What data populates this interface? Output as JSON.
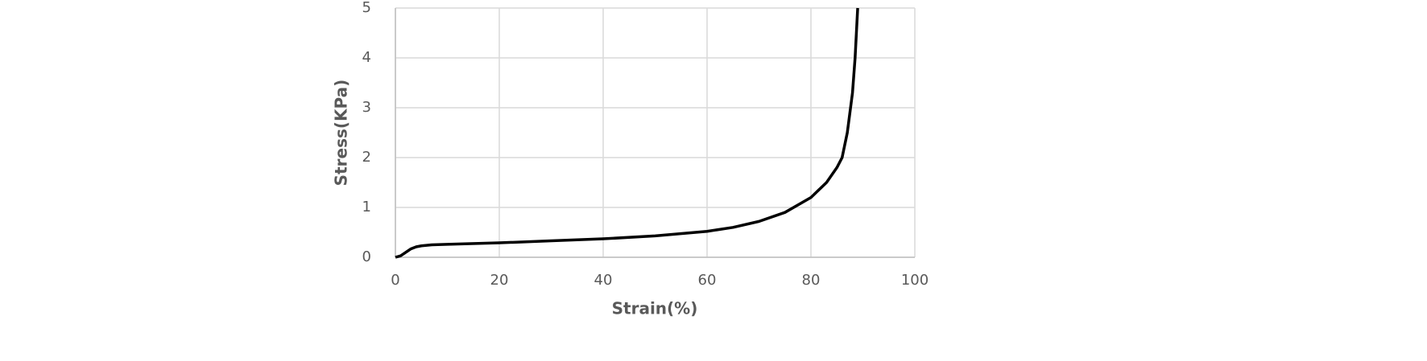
{
  "chart_data": {
    "type": "line",
    "x_label": "Strain(%)",
    "y_label": "Stress(KPa)",
    "xlim": [
      0,
      100
    ],
    "xticks": [
      0,
      20,
      40,
      60,
      80,
      100
    ],
    "ylim": [
      0,
      5
    ],
    "yticks": [
      0,
      1,
      2,
      3,
      4,
      5
    ],
    "grid": true,
    "series": [
      {
        "color": "#000000",
        "x": [
          0,
          1,
          2,
          3,
          4,
          5,
          7,
          10,
          20,
          30,
          40,
          50,
          60,
          65,
          70,
          75,
          80,
          83,
          85,
          86,
          87,
          88,
          88.5,
          89
        ],
        "values": [
          0,
          0.03,
          0.1,
          0.17,
          0.21,
          0.23,
          0.25,
          0.26,
          0.29,
          0.33,
          0.37,
          0.43,
          0.52,
          0.6,
          0.72,
          0.9,
          1.2,
          1.5,
          1.8,
          2.0,
          2.5,
          3.3,
          4.0,
          5.0
        ]
      }
    ]
  }
}
